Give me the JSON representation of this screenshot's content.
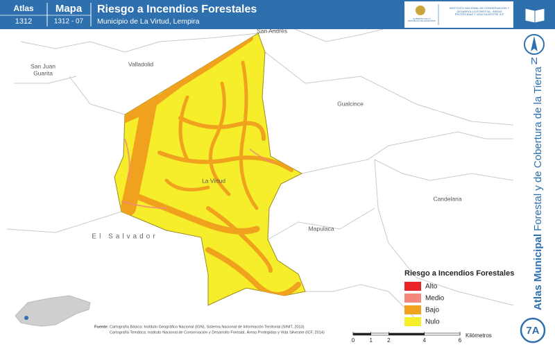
{
  "header": {
    "atlas_label": "Atlas",
    "atlas_code": "1312",
    "map_label": "Mapa",
    "map_code": "1312 - 07",
    "title": "Riesgo a Incendios Forestales",
    "subtitle": "Municipio de La Virtud, Lempira",
    "logo_left": "GOBIERNO DE LA REPÚBLICA DE HONDURAS",
    "logo_right": "INSTITUTO NACIONAL DE CONSERVACIÓN Y DESARROLLO FORESTAL, ÁREAS PROTEGIDAS Y VIDA SILVESTRE ICF"
  },
  "sidebar": {
    "north": "N",
    "atlas_bold": "Atlas Municipal",
    "atlas_rest": "Forestal y de Cobertura de la Tierra",
    "sheet": "7A"
  },
  "places": [
    "San Andrés",
    "San Juan",
    "Guarita",
    "Valladolid",
    "Gualcince",
    "La Virtud",
    "Candelaria",
    "Mapulaca",
    "El Salvador"
  ],
  "legend": {
    "title": "Riesgo a Incendios Forestales",
    "items": [
      {
        "label": "Alto",
        "color": "#e8262a"
      },
      {
        "label": "Medio",
        "color": "#f4887a"
      },
      {
        "label": "Bajo",
        "color": "#f0a21e"
      },
      {
        "label": "Nulo",
        "color": "#f6ee2a"
      }
    ]
  },
  "source": {
    "label": "Fuente:",
    "lines": [
      "Cartografía Básica: Instituto Geográfico Nacional (IGN), Sistema Nacional de Información Territorial (SINIT, 2013)",
      "Cartografía Temática: Instituto Nacional de Conservación y Desarrollo Forestal, Áreas Protegidas y Vida Silvestre (ICF, 2014)"
    ]
  },
  "scale": {
    "ticks": [
      0,
      1,
      2,
      4,
      6
    ],
    "unit": "Kilómetros"
  }
}
